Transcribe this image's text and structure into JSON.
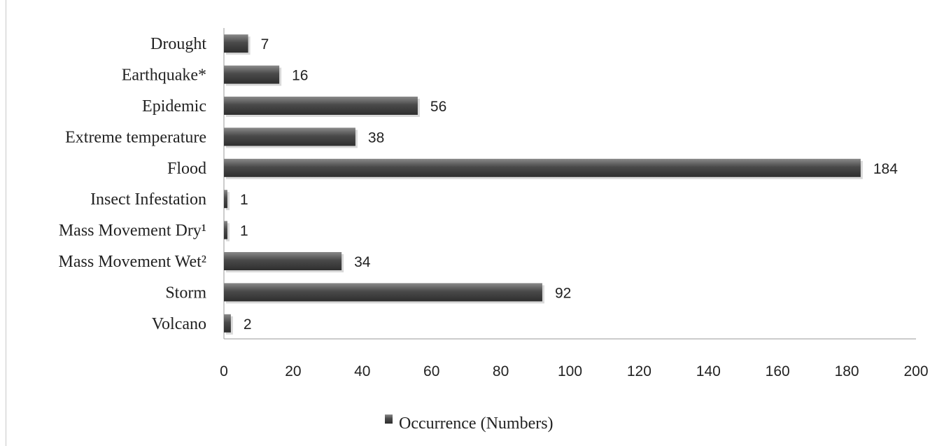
{
  "chart_data": {
    "type": "bar",
    "orientation": "horizontal",
    "categories": [
      "Drought",
      "Earthquake*",
      "Epidemic",
      "Extreme temperature",
      "Flood",
      "Insect Infestation",
      "Mass Movement Dry¹",
      "Mass Movement Wet²",
      "Storm",
      "Volcano"
    ],
    "series": [
      {
        "name": "Occurrence (Numbers)",
        "values": [
          7,
          16,
          56,
          38,
          184,
          1,
          1,
          34,
          92,
          2
        ]
      }
    ],
    "xlim": [
      0,
      200
    ],
    "xticks": [
      "0",
      "20",
      "40",
      "60",
      "80",
      "100",
      "120",
      "140",
      "160",
      "180",
      "200"
    ],
    "legend_position": "bottom",
    "grid": false,
    "bar_color": "#555555"
  }
}
